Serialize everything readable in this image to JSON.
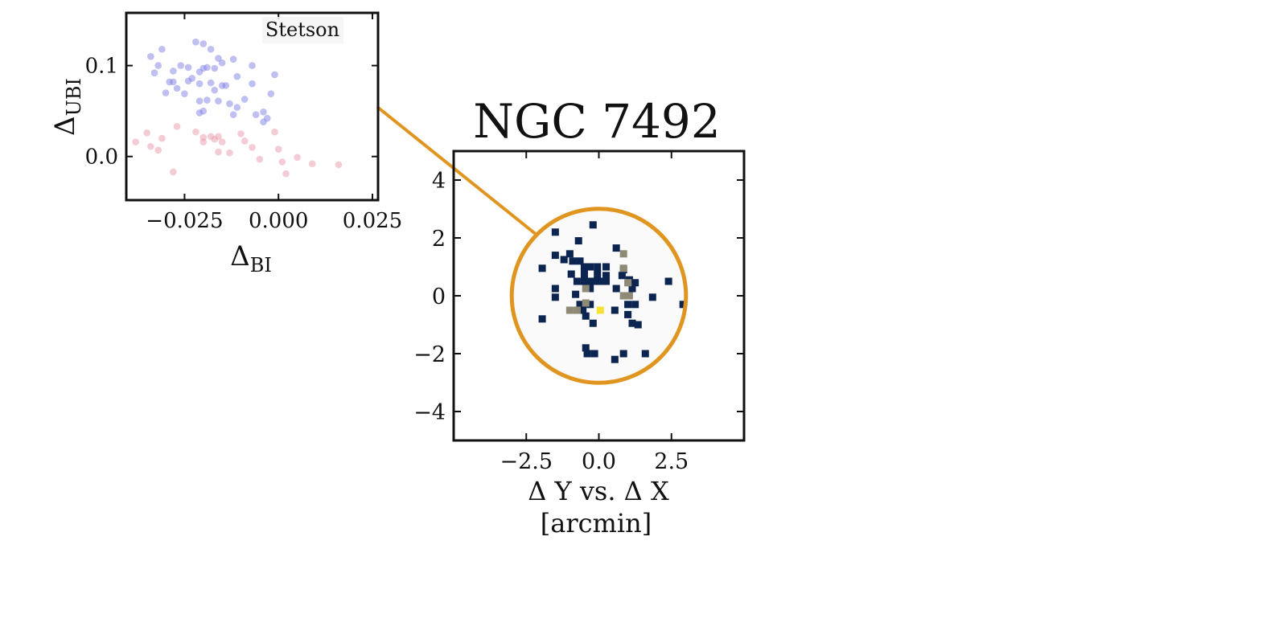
{
  "chart_data": [
    {
      "type": "scatter",
      "id": "inset",
      "legend_box_label": "Stetson",
      "xlabel_symbol": "Δ",
      "xlabel_sub": "BI",
      "ylabel_symbol": "Δ",
      "ylabel_sub": "UBI",
      "xlim": [
        -0.0405,
        0.0265
      ],
      "ylim": [
        -0.048,
        0.158
      ],
      "x_ticks": [
        {
          "value": -0.025,
          "label": "−0.025"
        },
        {
          "value": 0.0,
          "label": "0.000"
        },
        {
          "value": 0.025,
          "label": "0.025"
        }
      ],
      "y_ticks": [
        {
          "value": 0.0,
          "label": "0.0"
        },
        {
          "value": 0.1,
          "label": "0.1"
        }
      ],
      "series": [
        {
          "color": "#7f7fe6",
          "points": [
            [
              -0.031,
              0.118
            ],
            [
              -0.034,
              0.11
            ],
            [
              -0.032,
              0.1
            ],
            [
              -0.033,
              0.092
            ],
            [
              -0.029,
              0.082
            ],
            [
              -0.028,
              0.082
            ],
            [
              -0.03,
              0.07
            ],
            [
              -0.027,
              0.075
            ],
            [
              -0.025,
              0.069
            ],
            [
              -0.026,
              0.1
            ],
            [
              -0.024,
              0.098
            ],
            [
              -0.023,
              0.086
            ],
            [
              -0.022,
              0.126
            ],
            [
              -0.02,
              0.124
            ],
            [
              -0.02,
              0.097
            ],
            [
              -0.021,
              0.093
            ],
            [
              -0.021,
              0.08
            ],
            [
              -0.018,
              0.118
            ],
            [
              -0.016,
              0.108
            ],
            [
              -0.015,
              0.103
            ],
            [
              -0.017,
              0.097
            ],
            [
              -0.018,
              0.081
            ],
            [
              -0.017,
              0.073
            ],
            [
              -0.019,
              0.062
            ],
            [
              -0.021,
              0.061
            ],
            [
              -0.02,
              0.05
            ],
            [
              -0.021,
              0.048
            ],
            [
              -0.016,
              0.061
            ],
            [
              -0.014,
              0.078
            ],
            [
              -0.015,
              0.078
            ],
            [
              -0.012,
              0.107
            ],
            [
              -0.011,
              0.088
            ],
            [
              -0.013,
              0.058
            ],
            [
              -0.012,
              0.046
            ],
            [
              -0.009,
              0.063
            ],
            [
              -0.007,
              0.1
            ],
            [
              -0.007,
              0.08
            ],
            [
              -0.006,
              0.046
            ],
            [
              -0.004,
              0.049
            ],
            [
              -0.003,
              0.042
            ],
            [
              -0.004,
              0.038
            ],
            [
              -0.002,
              0.069
            ],
            [
              -0.001,
              0.09
            ],
            [
              -0.011,
              0.054
            ],
            [
              -0.024,
              0.083
            ],
            [
              -0.028,
              0.094
            ],
            [
              -0.019,
              0.098
            ]
          ]
        },
        {
          "color": "#e99aac",
          "points": [
            [
              -0.038,
              0.016
            ],
            [
              -0.035,
              0.026
            ],
            [
              -0.034,
              0.011
            ],
            [
              -0.031,
              0.02
            ],
            [
              -0.032,
              0.007
            ],
            [
              -0.027,
              0.033
            ],
            [
              -0.028,
              -0.017
            ],
            [
              -0.022,
              0.027
            ],
            [
              -0.02,
              0.021
            ],
            [
              -0.02,
              0.016
            ],
            [
              -0.017,
              0.019
            ],
            [
              -0.016,
              0.022
            ],
            [
              -0.015,
              0.016
            ],
            [
              -0.016,
              0.005
            ],
            [
              -0.013,
              0.004
            ],
            [
              -0.01,
              0.025
            ],
            [
              -0.009,
              0.017
            ],
            [
              -0.007,
              0.01
            ],
            [
              -0.005,
              -0.003
            ],
            [
              -0.001,
              0.027
            ],
            [
              0.0,
              0.008
            ],
            [
              0.001,
              -0.006
            ],
            [
              0.002,
              -0.019
            ],
            [
              0.005,
              -0.001
            ],
            [
              0.009,
              -0.008
            ],
            [
              0.016,
              -0.009
            ],
            [
              -0.018,
              0.022
            ]
          ]
        }
      ]
    },
    {
      "type": "heatmap",
      "id": "main",
      "title": "NGC 7492",
      "xlabel_line1": "Δ Y vs. Δ X",
      "xlabel_line2": "[arcmin]",
      "xlim": [
        -5,
        5
      ],
      "ylim": [
        -5,
        5
      ],
      "x_ticks": [
        {
          "value": -2.5,
          "label": "−2.5"
        },
        {
          "value": 0.0,
          "label": "0.0"
        },
        {
          "value": 2.5,
          "label": "2.5"
        }
      ],
      "y_ticks": [
        {
          "value": -4,
          "label": "−4"
        },
        {
          "value": -2,
          "label": "−2"
        },
        {
          "value": 0,
          "label": "0"
        },
        {
          "value": 2,
          "label": "2"
        },
        {
          "value": 4,
          "label": "4"
        }
      ],
      "bin_size": 0.25,
      "circle_center": [
        0,
        0
      ],
      "circle_radius": 3.0,
      "circle_color": "#e09520",
      "circle_fill": "#fafafa",
      "colors": {
        "low": "#0b2450",
        "mid": "#8e8a75",
        "high": "#f6e235"
      },
      "bins_low": [
        [
          -1.5,
          2.2
        ],
        [
          -0.7,
          1.9
        ],
        [
          0.6,
          1.65
        ],
        [
          -1.0,
          1.45
        ],
        [
          -1.5,
          1.4
        ],
        [
          -1.2,
          1.25
        ],
        [
          -0.9,
          1.2
        ],
        [
          -0.65,
          1.2
        ],
        [
          -1.95,
          0.95
        ],
        [
          -0.5,
          1.0
        ],
        [
          -0.3,
          1.0
        ],
        [
          -0.05,
          1.0
        ],
        [
          0.25,
          1.0
        ],
        [
          -0.95,
          0.75
        ],
        [
          0.85,
          0.9
        ],
        [
          -0.5,
          0.75
        ],
        [
          -0.05,
          0.75
        ],
        [
          0.25,
          0.7
        ],
        [
          0.8,
          0.7
        ],
        [
          -0.75,
          0.5
        ],
        [
          -0.5,
          0.5
        ],
        [
          -0.25,
          0.5
        ],
        [
          0.0,
          0.5
        ],
        [
          0.25,
          0.5
        ],
        [
          1.05,
          0.55
        ],
        [
          1.25,
          0.45
        ],
        [
          -1.5,
          0.25
        ],
        [
          -0.3,
          0.25
        ],
        [
          0.6,
          0.25
        ],
        [
          1.15,
          0.25
        ],
        [
          1.85,
          -0.05
        ],
        [
          -1.5,
          -0.05
        ],
        [
          2.4,
          0.5
        ],
        [
          -0.65,
          -0.3
        ],
        [
          -0.3,
          -0.3
        ],
        [
          1.0,
          -0.3
        ],
        [
          1.25,
          -0.3
        ],
        [
          -0.55,
          -0.5
        ],
        [
          0.55,
          -0.5
        ],
        [
          -0.45,
          -0.7
        ],
        [
          1.0,
          -0.65
        ],
        [
          -1.95,
          -0.8
        ],
        [
          -0.2,
          -0.95
        ],
        [
          1.15,
          -0.95
        ],
        [
          1.35,
          -1.0
        ],
        [
          -0.45,
          -1.8
        ],
        [
          -0.4,
          -2.0
        ],
        [
          -0.15,
          -2.0
        ],
        [
          0.85,
          -2.0
        ],
        [
          1.6,
          -2.0
        ],
        [
          0.55,
          -2.2
        ],
        [
          -0.2,
          2.45
        ],
        [
          2.9,
          -0.3
        ],
        [
          -0.8,
          0.05
        ]
      ],
      "bins_mid": [
        [
          0.85,
          1.45
        ],
        [
          0.85,
          0.95
        ],
        [
          1.0,
          0.45
        ],
        [
          0.85,
          0.0
        ],
        [
          1.05,
          0.0
        ],
        [
          -0.45,
          0.25
        ],
        [
          -1.0,
          -0.5
        ],
        [
          -0.75,
          -0.5
        ],
        [
          -0.45,
          -0.25
        ]
      ],
      "bins_high": [
        [
          0.05,
          -0.5
        ]
      ]
    }
  ]
}
